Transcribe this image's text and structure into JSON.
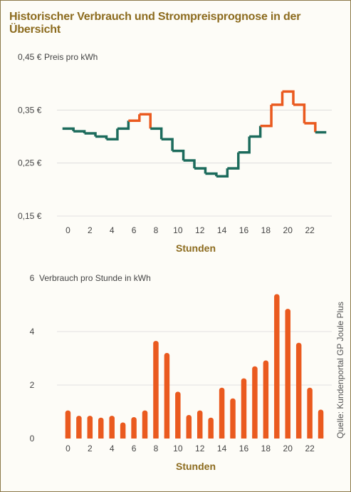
{
  "title": "Historischer Verbrauch und Strompreisprognose in der Übersicht",
  "source": "Quelle: Kundenportal GP Joule Plus",
  "colors": {
    "teal": "#1c6b5c",
    "orange": "#ea5a1f",
    "title": "#8c6b1e",
    "grid": "#d8d8d8"
  },
  "chart_data": [
    {
      "type": "line",
      "step": true,
      "unit_label": "Preis pro kWh",
      "xlabel": "Stunden",
      "x_ticks": [
        "0",
        "2",
        "4",
        "6",
        "8",
        "10",
        "12",
        "14",
        "16",
        "18",
        "20",
        "22"
      ],
      "y_ticks": [
        "0,15 €",
        "0,25 €",
        "0,35 €",
        "0,45 €"
      ],
      "y_tick_values": [
        0.15,
        0.25,
        0.35,
        0.45
      ],
      "ylim": [
        0.15,
        0.45
      ],
      "xlim": [
        -1,
        24
      ],
      "grid": true,
      "hours": [
        0,
        1,
        2,
        3,
        4,
        5,
        6,
        7,
        8,
        9,
        10,
        11,
        12,
        13,
        14,
        15,
        16,
        17,
        18,
        19,
        20,
        21,
        22,
        23
      ],
      "values": [
        0.315,
        0.31,
        0.306,
        0.3,
        0.295,
        0.315,
        0.33,
        0.342,
        0.315,
        0.295,
        0.273,
        0.255,
        0.24,
        0.23,
        0.225,
        0.24,
        0.27,
        0.3,
        0.32,
        0.36,
        0.385,
        0.36,
        0.325,
        0.308
      ],
      "segment_colors": [
        "teal",
        "teal",
        "teal",
        "teal",
        "teal",
        "teal",
        "orange",
        "orange",
        "teal",
        "teal",
        "teal",
        "teal",
        "teal",
        "teal",
        "teal",
        "teal",
        "teal",
        "teal",
        "orange",
        "orange",
        "orange",
        "orange",
        "orange",
        "teal"
      ]
    },
    {
      "type": "bar",
      "unit_label": "Verbrauch pro Stunde in kWh",
      "xlabel": "Stunden",
      "x_ticks": [
        "0",
        "2",
        "4",
        "6",
        "8",
        "10",
        "12",
        "14",
        "16",
        "18",
        "20",
        "22"
      ],
      "y_ticks": [
        "0",
        "2",
        "4",
        "6"
      ],
      "y_tick_values": [
        0,
        2,
        4,
        6
      ],
      "ylim": [
        0,
        6
      ],
      "xlim": [
        -1,
        24
      ],
      "grid": true,
      "hours": [
        0,
        1,
        2,
        3,
        4,
        5,
        6,
        7,
        8,
        9,
        10,
        11,
        12,
        13,
        14,
        15,
        16,
        17,
        18,
        19,
        20,
        21,
        22,
        23
      ],
      "values": [
        1.05,
        0.85,
        0.85,
        0.78,
        0.85,
        0.6,
        0.8,
        1.05,
        3.65,
        3.2,
        1.75,
        0.88,
        1.05,
        0.78,
        1.9,
        1.5,
        2.25,
        2.7,
        2.92,
        5.4,
        4.85,
        3.58,
        1.9,
        1.08
      ],
      "bar_color": "orange"
    }
  ]
}
